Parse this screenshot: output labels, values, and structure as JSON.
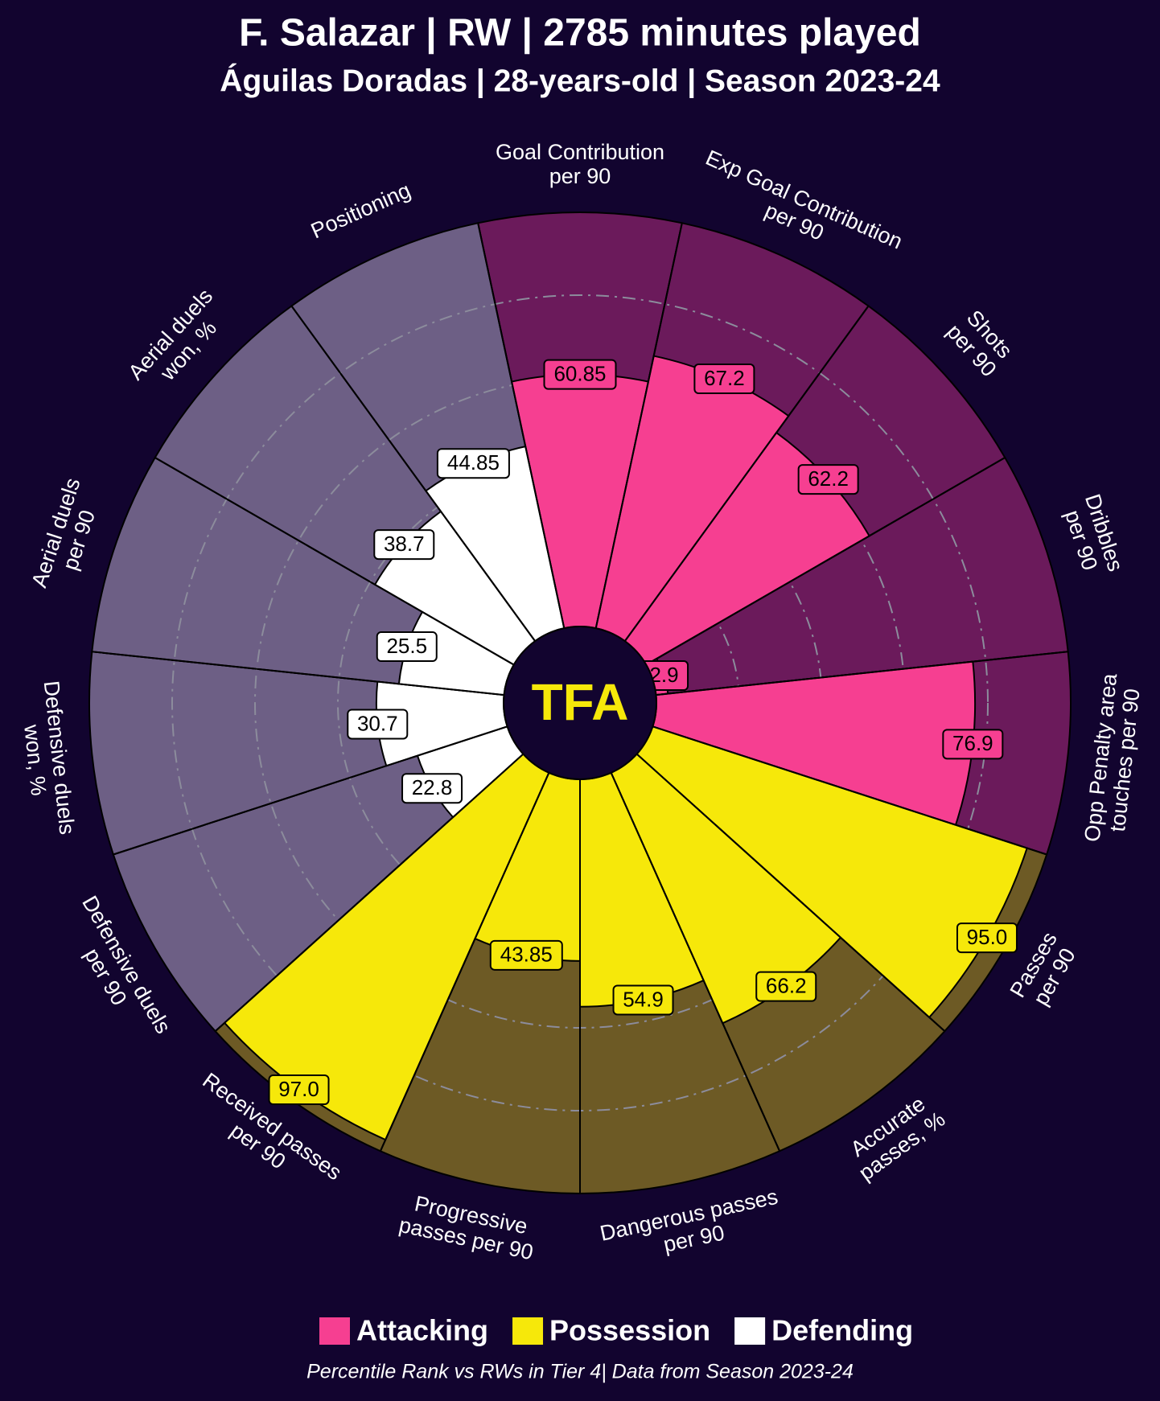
{
  "chart_data": {
    "type": "pizza",
    "title": "F. Salazar | RW | 2785 minutes played",
    "subtitle": "Águilas Doradas | 28-years-old | Season 2023-24",
    "logo_text": "TFA",
    "footer": "Percentile Rank vs RWs in Tier 4| Data from Season 2023-24",
    "rlim": [
      0,
      100
    ],
    "rticks": [
      20,
      40,
      60,
      80
    ],
    "series": [
      {
        "name": "Attacking",
        "color": "#f63f91",
        "background_color": "#6b1a5b",
        "categories": [
          [
            "Goal Contribution",
            "per 90"
          ],
          [
            "Exp Goal Contribution",
            "per 90"
          ],
          [
            "Shots",
            "per 90"
          ],
          [
            "Dribbles",
            "per 90"
          ],
          [
            "Opp Penalty area",
            "touches per 90"
          ]
        ],
        "values": [
          60.85,
          67.2,
          62.2,
          2.9,
          76.9
        ],
        "value_labels": [
          "60.85",
          "67.2",
          "62.2",
          "2.9",
          "76.9"
        ]
      },
      {
        "name": "Possession",
        "color": "#f6e80a",
        "background_color": "#6d5a25",
        "categories": [
          [
            "Passes",
            "per 90"
          ],
          [
            "Accurate",
            "passes, %"
          ],
          [
            "Dangerous passes",
            "per 90"
          ],
          [
            "Progressive",
            "passes per 90"
          ],
          [
            "Received passes",
            "per 90"
          ]
        ],
        "values": [
          95.0,
          66.2,
          54.9,
          43.85,
          97.0
        ],
        "value_labels": [
          "95.0",
          "66.2",
          "54.9",
          "43.85",
          "97.0"
        ]
      },
      {
        "name": "Defending",
        "color": "#ffffff",
        "background_color": "#6d5f85",
        "categories": [
          [
            "Defensive duels",
            "per 90"
          ],
          [
            "Defensive duels",
            "won, %"
          ],
          [
            "Aerial duels",
            "per 90"
          ],
          [
            "Aerial duels",
            "won, %"
          ],
          [
            "Positioning"
          ]
        ],
        "values": [
          22.8,
          30.7,
          25.5,
          38.7,
          44.85
        ],
        "value_labels": [
          "22.8",
          "30.7",
          "25.5",
          "38.7",
          "44.85"
        ]
      }
    ]
  }
}
